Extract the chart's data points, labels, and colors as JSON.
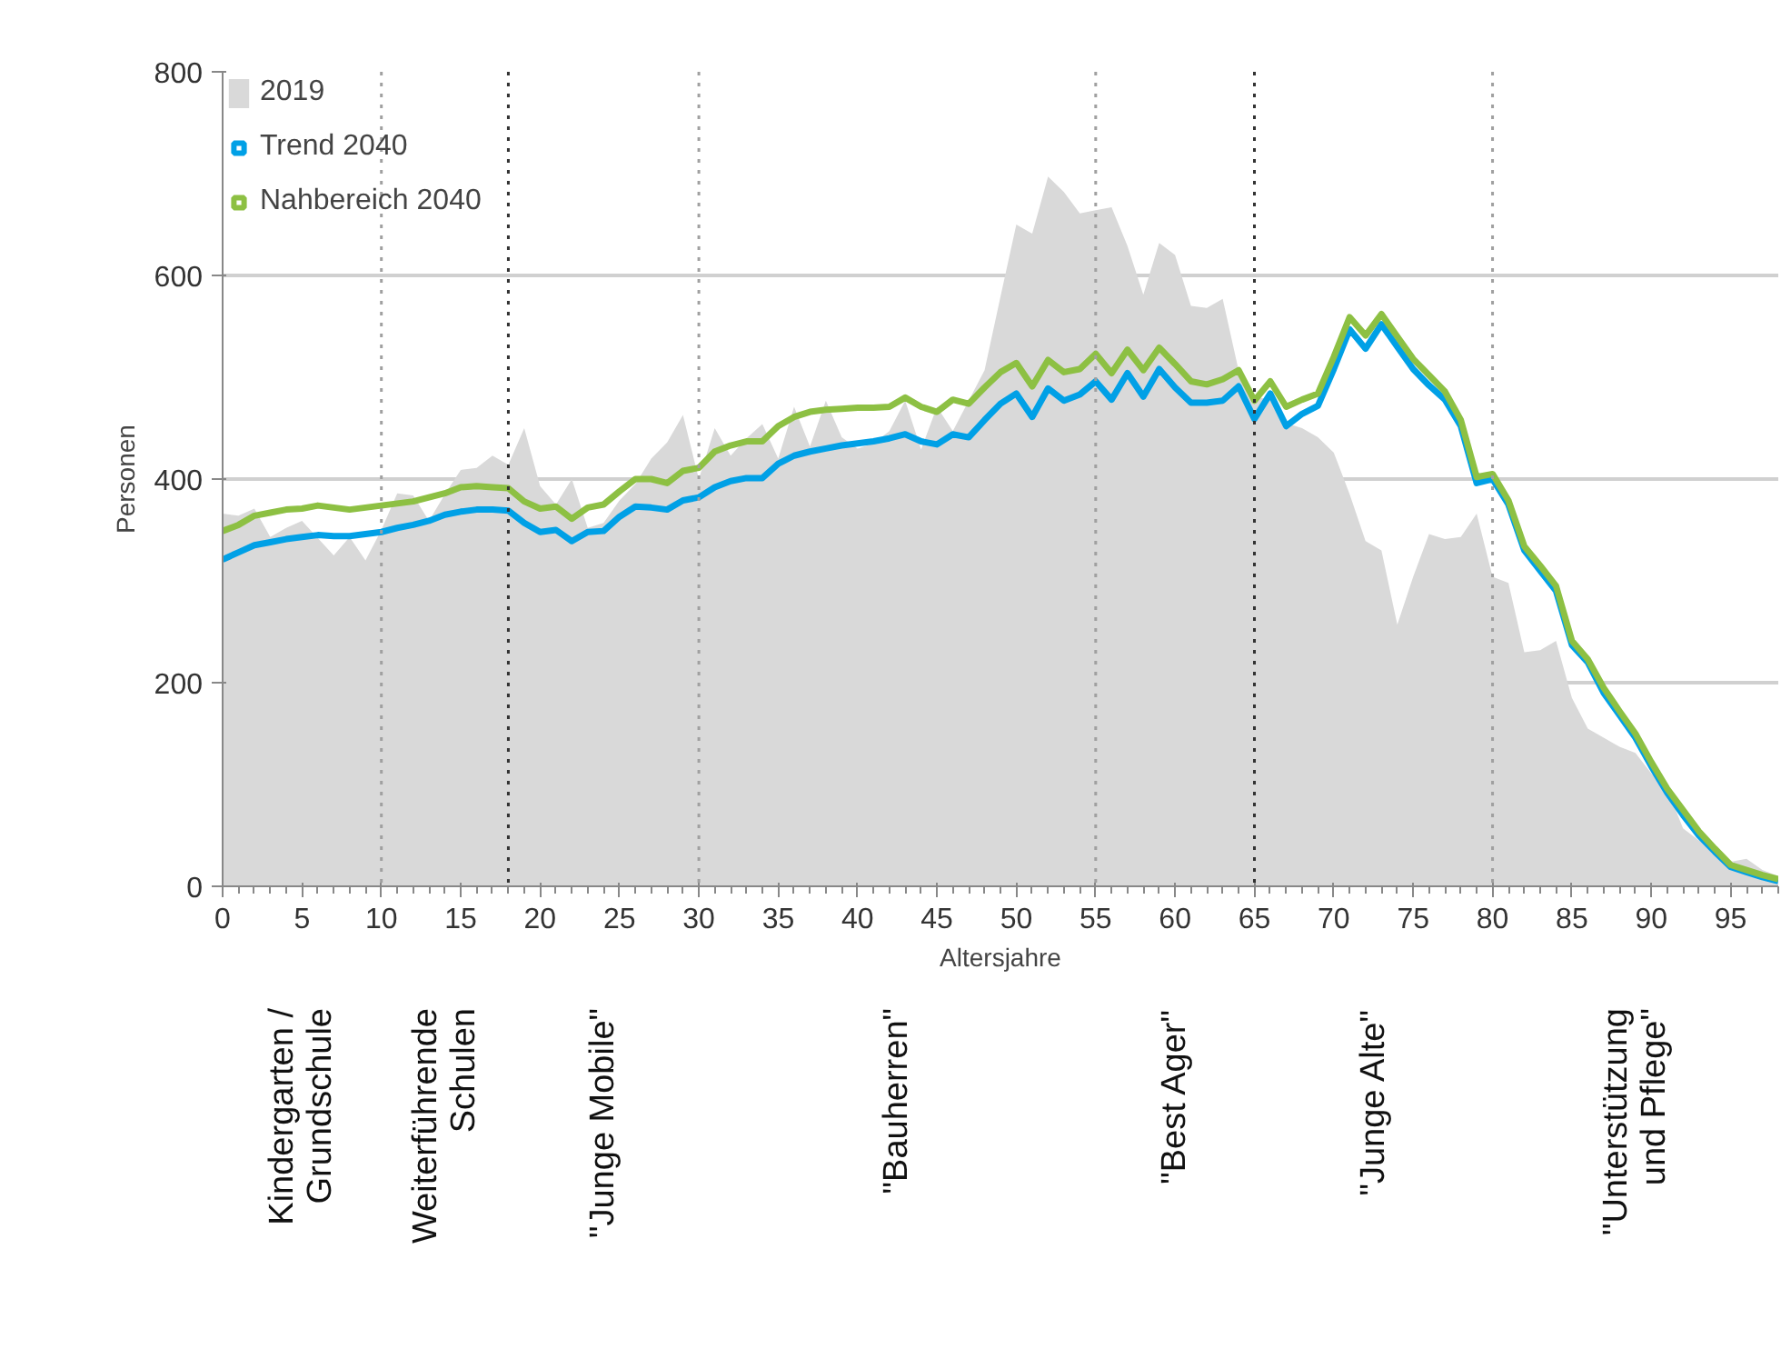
{
  "chart_data": {
    "type": "area",
    "xlabel": "Altersjahre",
    "ylabel": "Personen",
    "x": [
      0,
      1,
      2,
      3,
      4,
      5,
      6,
      7,
      8,
      9,
      10,
      11,
      12,
      13,
      14,
      15,
      16,
      17,
      18,
      19,
      20,
      21,
      22,
      23,
      24,
      25,
      26,
      27,
      28,
      29,
      30,
      31,
      32,
      33,
      34,
      35,
      36,
      37,
      38,
      39,
      40,
      41,
      42,
      43,
      44,
      45,
      46,
      47,
      48,
      49,
      50,
      51,
      52,
      53,
      54,
      55,
      56,
      57,
      58,
      59,
      60,
      61,
      62,
      63,
      64,
      65,
      66,
      67,
      68,
      69,
      70,
      71,
      72,
      73,
      74,
      75,
      76,
      77,
      78,
      79,
      80,
      81,
      82,
      83,
      84,
      85,
      86,
      87,
      88,
      89,
      90,
      91,
      92,
      93,
      94,
      95,
      96,
      97,
      98
    ],
    "series": [
      {
        "name": "2019",
        "color": "#d9d9d9",
        "values": [
          366,
          364,
          371,
          343,
          352,
          359,
          342,
          325,
          343,
          320,
          350,
          386,
          384,
          359,
          385,
          409,
          411,
          423,
          414,
          450,
          393,
          375,
          400,
          352,
          357,
          379,
          395,
          420,
          436,
          463,
          400,
          450,
          423,
          440,
          454,
          420,
          471,
          432,
          477,
          441,
          430,
          435,
          447,
          477,
          429,
          471,
          447,
          477,
          507,
          579,
          650,
          641,
          697,
          682,
          661,
          664,
          667,
          629,
          581,
          632,
          620,
          570,
          568,
          577,
          507,
          482,
          477,
          455,
          450,
          441,
          426,
          385,
          339,
          330,
          257,
          304,
          346,
          341,
          343,
          366,
          304,
          298,
          230,
          232,
          241,
          185,
          155,
          146,
          137,
          131,
          111,
          96,
          57,
          45,
          33,
          24,
          27,
          16,
          10
        ]
      },
      {
        "name": "Trend 2040",
        "type": "line",
        "color": "#00a0e6",
        "values": [
          321,
          328,
          335,
          338,
          341,
          343,
          345,
          344,
          344,
          346,
          348,
          352,
          355,
          359,
          365,
          368,
          370,
          370,
          369,
          357,
          348,
          350,
          339,
          348,
          349,
          363,
          373,
          372,
          370,
          379,
          382,
          392,
          398,
          401,
          401,
          415,
          423,
          427,
          430,
          433,
          435,
          437,
          440,
          444,
          437,
          434,
          444,
          441,
          458,
          474,
          484,
          461,
          489,
          477,
          483,
          496,
          478,
          504,
          481,
          508,
          490,
          475,
          475,
          477,
          491,
          459,
          484,
          452,
          464,
          472,
          508,
          547,
          528,
          552,
          530,
          508,
          492,
          478,
          452,
          396,
          400,
          375,
          330,
          310,
          290,
          237,
          220,
          190,
          168,
          146,
          118,
          92,
          70,
          50,
          34,
          19,
          14,
          9,
          5
        ]
      },
      {
        "name": "Nahbereich 2040",
        "type": "line",
        "color": "#8dc043",
        "values": [
          349,
          355,
          364,
          367,
          370,
          371,
          374,
          372,
          370,
          372,
          374,
          376,
          378,
          382,
          386,
          392,
          393,
          392,
          391,
          378,
          371,
          373,
          361,
          372,
          375,
          388,
          400,
          400,
          396,
          408,
          411,
          427,
          433,
          437,
          437,
          452,
          461,
          466,
          468,
          469,
          470,
          470,
          471,
          480,
          471,
          466,
          478,
          474,
          490,
          505,
          514,
          491,
          517,
          505,
          508,
          523,
          504,
          527,
          507,
          529,
          513,
          496,
          493,
          498,
          507,
          477,
          496,
          471,
          478,
          484,
          520,
          559,
          541,
          562,
          540,
          518,
          502,
          486,
          458,
          402,
          405,
          379,
          334,
          315,
          295,
          241,
          223,
          195,
          172,
          150,
          122,
          96,
          75,
          54,
          37,
          21,
          16,
          11,
          7
        ]
      }
    ],
    "xlim": [
      0,
      98
    ],
    "xticks": [
      0,
      5,
      10,
      15,
      20,
      25,
      30,
      35,
      40,
      45,
      50,
      55,
      60,
      65,
      70,
      75,
      80,
      85,
      90,
      95
    ],
    "ylim": [
      0,
      800
    ],
    "yticks": [
      0,
      200,
      400,
      600,
      800
    ],
    "grid": "y",
    "legend": "top left",
    "line_style": "solid",
    "ref_lines": [
      {
        "axis": "x",
        "value": 10,
        "color": "#a0a0a0",
        "line_style": "dotted"
      },
      {
        "axis": "x",
        "value": 18,
        "color": "#333333",
        "line_style": "dotted"
      },
      {
        "axis": "x",
        "value": 30,
        "color": "#a0a0a0",
        "line_style": "dotted"
      },
      {
        "axis": "x",
        "value": 55,
        "color": "#a0a0a0",
        "line_style": "dotted"
      },
      {
        "axis": "x",
        "value": 65,
        "color": "#333333",
        "line_style": "dotted"
      },
      {
        "axis": "x",
        "value": 80,
        "color": "#a0a0a0",
        "line_style": "dotted"
      }
    ],
    "annotations": [
      "Kindergarten /\nGrundschule",
      "Weiterführende\nSchulen",
      "\"Junge Mobile\"",
      "\"Bauherren\"",
      "\"Best Ager\"",
      "\"Junge Alte\"",
      "\"Unterstützung\nund Pflege\""
    ]
  }
}
